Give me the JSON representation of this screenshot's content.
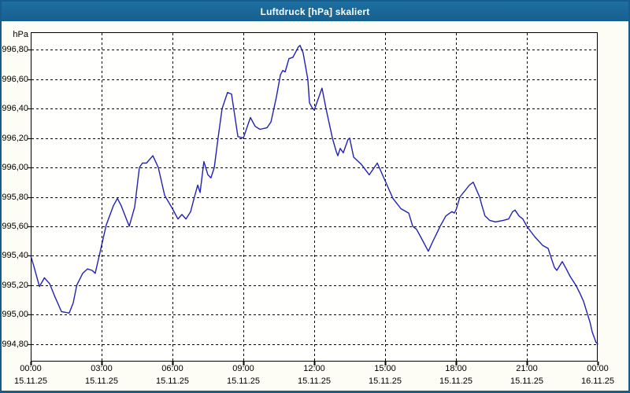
{
  "window": {
    "title": "Luftdruck [hPa] skaliert"
  },
  "colors": {
    "title_bar_top": "#1e6fa2",
    "title_bar_bottom": "#16608f",
    "title_text": "#ffffff",
    "frame": "#175d8c",
    "content_bg": "#fdfdf5",
    "plot_bg": "#fffffd",
    "grid": "#000000",
    "axis_text": "#000000",
    "line": "#2121b4"
  },
  "chart_data": {
    "type": "line",
    "title": "Luftdruck [hPa] skaliert",
    "unit_label": "hPa",
    "xlabel": "",
    "ylabel": "hPa",
    "xlim": [
      0,
      24
    ],
    "ylim": [
      994.68,
      996.92
    ],
    "grid": true,
    "legend": "none",
    "x_ticks": [
      {
        "hour": 0,
        "time": "00:00",
        "date": "15.11.25"
      },
      {
        "hour": 3,
        "time": "03:00",
        "date": "15.11.25"
      },
      {
        "hour": 6,
        "time": "06:00",
        "date": "15.11.25"
      },
      {
        "hour": 9,
        "time": "09:00",
        "date": "15.11.25"
      },
      {
        "hour": 12,
        "time": "12:00",
        "date": "15.11.25"
      },
      {
        "hour": 15,
        "time": "15:00",
        "date": "15.11.25"
      },
      {
        "hour": 18,
        "time": "18:00",
        "date": "15.11.25"
      },
      {
        "hour": 21,
        "time": "21:00",
        "date": "15.11.25"
      },
      {
        "hour": 24,
        "time": "00:00",
        "date": "16.11.25"
      }
    ],
    "y_ticks": [
      {
        "value": 996.8,
        "label": "996,80"
      },
      {
        "value": 996.6,
        "label": "996,60"
      },
      {
        "value": 996.4,
        "label": "996,40"
      },
      {
        "value": 996.2,
        "label": "996,20"
      },
      {
        "value": 996.0,
        "label": "996,00"
      },
      {
        "value": 995.8,
        "label": "995,80"
      },
      {
        "value": 995.6,
        "label": "995,60"
      },
      {
        "value": 995.4,
        "label": "995,40"
      },
      {
        "value": 995.2,
        "label": "995,20"
      },
      {
        "value": 995.0,
        "label": "995,00"
      },
      {
        "value": 994.8,
        "label": "994,80"
      }
    ],
    "series": [
      {
        "name": "Luftdruck [hPa]",
        "points": [
          [
            0,
            995.4
          ],
          [
            0.13,
            995.33
          ],
          [
            0.37,
            995.19
          ],
          [
            0.58,
            995.25
          ],
          [
            0.8,
            995.21
          ],
          [
            1,
            995.13
          ],
          [
            1.3,
            995.02
          ],
          [
            1.63,
            995.01
          ],
          [
            1.8,
            995.08
          ],
          [
            1.95,
            995.2
          ],
          [
            2.2,
            995.28
          ],
          [
            2.4,
            995.31
          ],
          [
            2.6,
            995.3
          ],
          [
            2.73,
            995.28
          ],
          [
            3,
            995.47
          ],
          [
            3.2,
            995.61
          ],
          [
            3.5,
            995.74
          ],
          [
            3.67,
            995.79
          ],
          [
            3.83,
            995.74
          ],
          [
            4.17,
            995.6
          ],
          [
            4.4,
            995.73
          ],
          [
            4.6,
            996.0
          ],
          [
            4.73,
            996.03
          ],
          [
            4.9,
            996.03
          ],
          [
            5.17,
            996.08
          ],
          [
            5.4,
            996.0
          ],
          [
            5.67,
            995.81
          ],
          [
            6,
            995.72
          ],
          [
            6.23,
            995.65
          ],
          [
            6.4,
            995.68
          ],
          [
            6.57,
            995.65
          ],
          [
            6.77,
            995.7
          ],
          [
            6.93,
            995.8
          ],
          [
            7.07,
            995.88
          ],
          [
            7.17,
            995.83
          ],
          [
            7.33,
            996.04
          ],
          [
            7.5,
            995.95
          ],
          [
            7.63,
            995.93
          ],
          [
            7.77,
            996.0
          ],
          [
            7.93,
            996.2
          ],
          [
            8.1,
            996.4
          ],
          [
            8.33,
            996.51
          ],
          [
            8.5,
            996.5
          ],
          [
            8.77,
            996.21
          ],
          [
            9,
            996.2
          ],
          [
            9.3,
            996.34
          ],
          [
            9.5,
            996.28
          ],
          [
            9.7,
            996.26
          ],
          [
            10,
            996.27
          ],
          [
            10.17,
            996.31
          ],
          [
            10.4,
            996.48
          ],
          [
            10.57,
            996.63
          ],
          [
            10.67,
            996.66
          ],
          [
            10.77,
            996.65
          ],
          [
            10.93,
            996.74
          ],
          [
            11.1,
            996.75
          ],
          [
            11.33,
            996.82
          ],
          [
            11.4,
            996.83
          ],
          [
            11.53,
            996.78
          ],
          [
            11.73,
            996.6
          ],
          [
            11.8,
            996.44
          ],
          [
            11.9,
            996.41
          ],
          [
            12,
            996.39
          ],
          [
            12.33,
            996.54
          ],
          [
            12.5,
            996.4
          ],
          [
            12.77,
            996.2
          ],
          [
            12.93,
            996.11
          ],
          [
            13,
            996.08
          ],
          [
            13.1,
            996.13
          ],
          [
            13.23,
            996.1
          ],
          [
            13.43,
            996.19
          ],
          [
            13.5,
            996.2
          ],
          [
            13.67,
            996.07
          ],
          [
            14,
            996.02
          ],
          [
            14.33,
            995.95
          ],
          [
            14.67,
            996.03
          ],
          [
            15,
            995.91
          ],
          [
            15.33,
            995.79
          ],
          [
            15.67,
            995.72
          ],
          [
            16,
            995.69
          ],
          [
            16.17,
            995.6
          ],
          [
            16.33,
            995.58
          ],
          [
            16.5,
            995.53
          ],
          [
            16.83,
            995.43
          ],
          [
            17,
            995.49
          ],
          [
            17.33,
            995.6
          ],
          [
            17.57,
            995.67
          ],
          [
            17.83,
            995.7
          ],
          [
            17.93,
            995.69
          ],
          [
            18,
            995.71
          ],
          [
            18.17,
            995.8
          ],
          [
            18.57,
            995.88
          ],
          [
            18.73,
            995.9
          ],
          [
            19,
            995.8
          ],
          [
            19.1,
            995.74
          ],
          [
            19.23,
            995.67
          ],
          [
            19.43,
            995.64
          ],
          [
            19.67,
            995.63
          ],
          [
            20,
            995.64
          ],
          [
            20.23,
            995.65
          ],
          [
            20.4,
            995.7
          ],
          [
            20.5,
            995.71
          ],
          [
            20.67,
            995.67
          ],
          [
            20.83,
            995.65
          ],
          [
            21,
            995.6
          ],
          [
            21.33,
            995.53
          ],
          [
            21.67,
            995.47
          ],
          [
            21.9,
            995.45
          ],
          [
            22,
            995.4
          ],
          [
            22.17,
            995.32
          ],
          [
            22.27,
            995.3
          ],
          [
            22.5,
            995.36
          ],
          [
            22.67,
            995.31
          ],
          [
            22.83,
            995.26
          ],
          [
            23.07,
            995.2
          ],
          [
            23.23,
            995.15
          ],
          [
            23.4,
            995.09
          ],
          [
            23.57,
            995.0
          ],
          [
            23.67,
            994.95
          ],
          [
            23.77,
            994.88
          ],
          [
            23.93,
            994.81
          ],
          [
            24,
            994.8
          ]
        ]
      }
    ]
  }
}
